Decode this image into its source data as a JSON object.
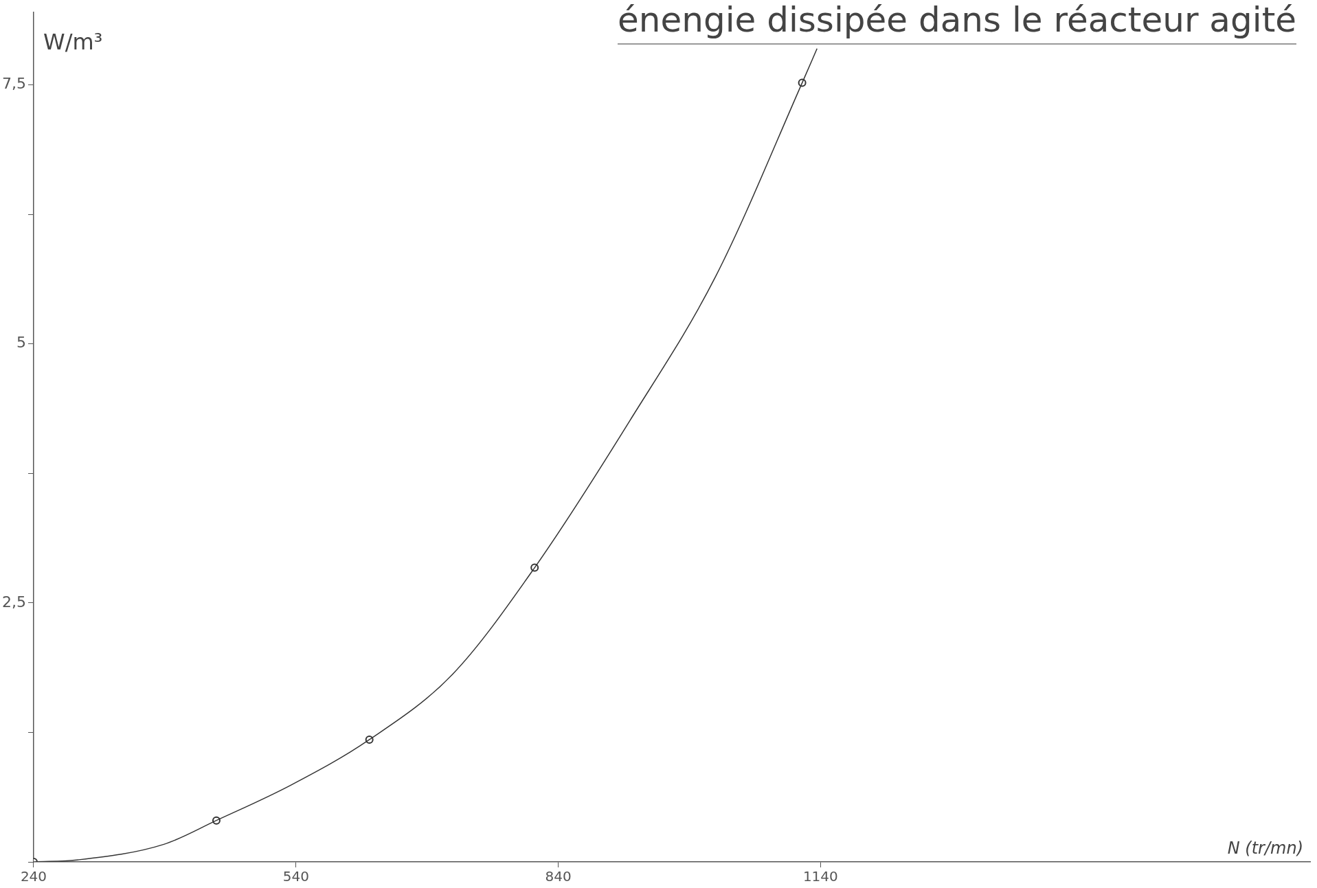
{
  "chart_data": {
    "type": "scatter",
    "title": "énengie dissipée dans le réacteur agité",
    "xlabel": "N (tr/mn)",
    "ylabel": "W/m³",
    "xlim": [
      240,
      1700
    ],
    "ylim": [
      0,
      8.2
    ],
    "xticks": [
      240,
      540,
      840,
      1140
    ],
    "yticks": [
      {
        "value": 0,
        "label": null
      },
      {
        "value": 1.25,
        "label": null
      },
      {
        "value": 2.5,
        "label": "2,5"
      },
      {
        "value": 3.75,
        "label": null
      },
      {
        "value": 5,
        "label": "5"
      },
      {
        "value": 6.25,
        "label": null
      },
      {
        "value": 7.5,
        "label": "7,5"
      }
    ],
    "grid": false,
    "legend": false,
    "series": [
      {
        "type": "line",
        "color": "#333333",
        "marker": "none",
        "x": [
          240,
          291,
          389,
          449,
          534,
          624,
          719,
          813,
          922,
          1020,
          1119,
          1136
        ],
        "values": [
          0,
          0.02,
          0.17,
          0.4,
          0.74,
          1.18,
          1.81,
          2.84,
          4.26,
          5.65,
          7.52,
          7.85
        ]
      },
      {
        "color": "#333333",
        "marker": "circle",
        "x": [
          240,
          449,
          624,
          813,
          1119
        ],
        "values": [
          0,
          0.4,
          1.18,
          2.84,
          7.52
        ]
      }
    ]
  }
}
